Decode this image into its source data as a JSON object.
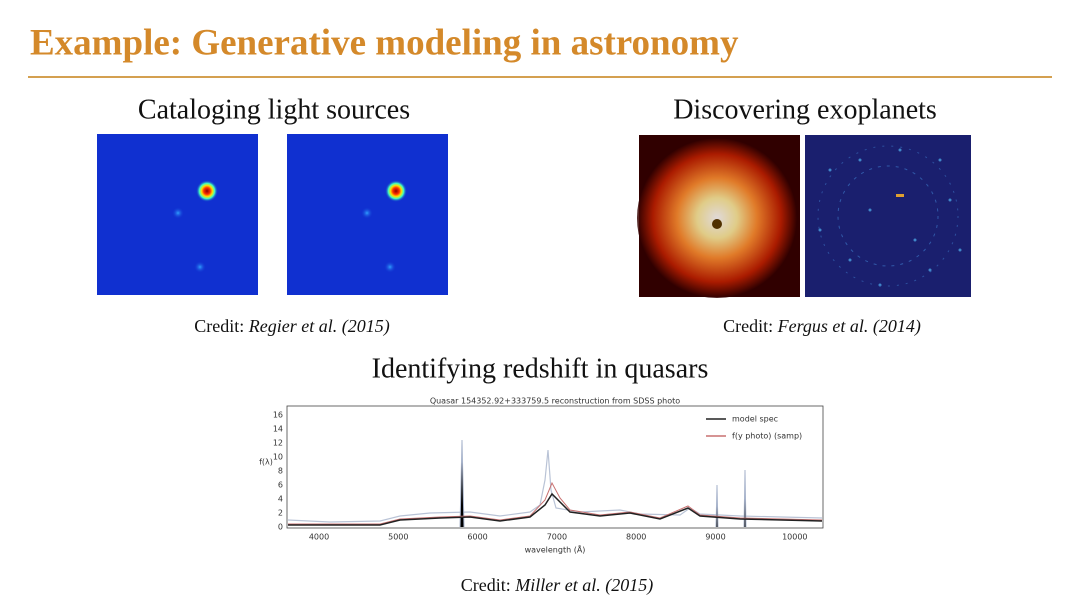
{
  "header": {
    "title": "Example: Generative modeling in astronomy"
  },
  "sections": [
    {
      "heading": "Cataloging light sources",
      "credit": {
        "label": "Credit:",
        "source": "Regier et al. (2015)"
      }
    },
    {
      "heading": "Discovering exoplanets",
      "credit": {
        "label": "Credit:",
        "source": "Fergus et al. (2014)"
      }
    },
    {
      "heading": "Identifying redshift in quasars",
      "credit": {
        "label": "Credit:",
        "source": "Miller et al. (2015)"
      },
      "figure": {
        "title": "Quasar 154352.92+333759.5 reconstruction from SDSS photo",
        "x_label": "wavelength (Å)",
        "y_label": "f(λ)",
        "x_ticks": [
          4000,
          5000,
          6000,
          7000,
          8000,
          9000,
          10000
        ],
        "y_ticks": [
          0,
          2,
          4,
          6,
          8,
          10,
          12,
          14,
          16
        ],
        "legend": [
          "model spec",
          "f(y photo) (samp)"
        ]
      }
    }
  ]
}
